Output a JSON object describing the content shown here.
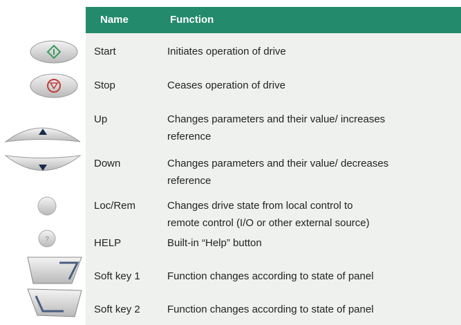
{
  "table": {
    "header": [
      "Name",
      "Function"
    ],
    "rows": [
      [
        "Start",
        [
          "Initiates operation of drive"
        ]
      ],
      [
        "Stop",
        [
          "Ceases operation of drive"
        ]
      ],
      [
        "Up",
        [
          "Changes parameters and their value/ increases",
          "reference"
        ]
      ],
      [
        "Down",
        [
          "Changes parameters and their value/ decreases",
          "reference"
        ]
      ],
      [
        "Loc/Rem",
        [
          "Changes drive state from local control to",
          "remote control (I/O or other external source)"
        ]
      ],
      [
        "HELP",
        [
          "Built-in “Help” button"
        ]
      ],
      [
        "Soft key 1",
        [
          "Function changes according to state of panel"
        ]
      ],
      [
        "Soft key 2",
        [
          "Function changes according to state of panel"
        ]
      ]
    ]
  }
}
